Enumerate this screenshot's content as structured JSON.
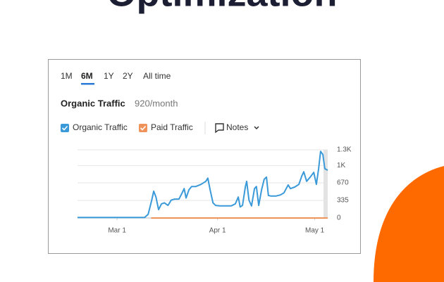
{
  "header": {
    "title": "Optimization"
  },
  "tabs": [
    "1M",
    "6M",
    "1Y",
    "2Y",
    "All time"
  ],
  "toolbar": {
    "notes": "Notes"
  },
  "chart_data": {
    "type": "line",
    "title": "Organic Traffic",
    "subtitle": "920/month",
    "series": [
      {
        "name": "Organic Traffic",
        "color": "#3a9ad9",
        "x": [
          -12.2,
          8.5,
          9.6,
          10.7,
          11.3,
          12.0,
          12.8,
          13.7,
          14.6,
          15.7,
          16.7,
          17.8,
          19.1,
          20.0,
          20.7,
          21.3,
          22.2,
          23.0,
          24.3,
          25.9,
          27.4,
          28.0,
          28.7,
          29.6,
          30.4,
          31.7,
          33.5,
          35.2,
          36.5,
          37.4,
          38.0,
          38.7,
          39.6,
          40.0,
          40.7,
          41.5,
          42.4,
          43.0,
          43.7,
          44.6,
          45.4,
          46.1,
          46.7,
          47.4,
          49.1,
          50.4,
          51.5,
          52.2,
          52.8,
          53.5,
          54.8,
          56.1,
          57.0,
          57.6,
          58.5,
          59.6,
          60.7,
          61.5,
          62.2,
          62.8,
          63.5,
          64.1,
          65.0
        ],
        "values": [
          10,
          10,
          70,
          340,
          510,
          400,
          160,
          270,
          290,
          240,
          340,
          360,
          360,
          470,
          560,
          380,
          540,
          600,
          600,
          640,
          700,
          760,
          540,
          290,
          240,
          230,
          230,
          230,
          270,
          400,
          210,
          240,
          600,
          700,
          340,
          230,
          560,
          600,
          240,
          540,
          740,
          780,
          430,
          420,
          420,
          440,
          480,
          560,
          630,
          560,
          590,
          640,
          800,
          880,
          700,
          780,
          870,
          640,
          940,
          1270,
          1210,
          940,
          910
        ]
      },
      {
        "name": "Paid Traffic",
        "color": "#f0935a",
        "x": [
          10.5,
          65.0
        ],
        "values": [
          0,
          0
        ]
      }
    ],
    "xlim": [
      -12.2,
      65.0
    ],
    "xticks": [
      {
        "value": 0,
        "label": "Mar 1"
      },
      {
        "value": 31,
        "label": "Apr 1"
      },
      {
        "value": 61,
        "label": "May 1"
      }
    ],
    "ylim": [
      0,
      1300
    ],
    "yticks": [
      0,
      335,
      670,
      {
        "value": 1000,
        "label": "1K"
      },
      {
        "value": 1300,
        "label": "1.3K"
      }
    ],
    "grid": true
  }
}
